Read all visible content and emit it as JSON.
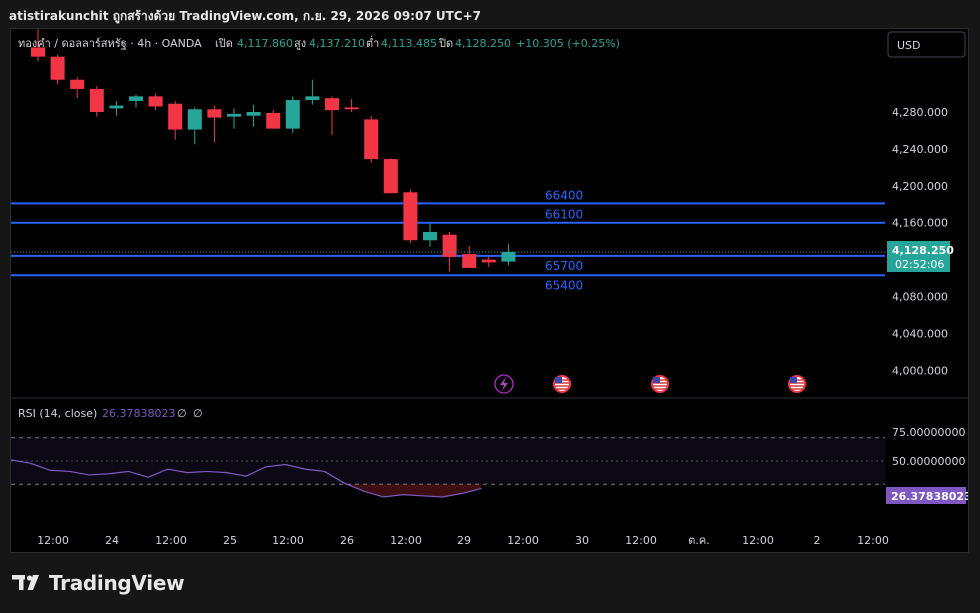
{
  "header": {
    "credit": "atistirakunchit ถูกสร้างด้วย TradingView.com, ก.ย. 29, 2026 09:07 UTC+7"
  },
  "legend": {
    "symbol": "ทองคำ / ดอลลาร์สหรัฐ · 4h · OANDA",
    "open_label": "เปิด",
    "open": "4,117.860",
    "high_label": "สูง",
    "high": "4,137.210",
    "low_label": "ต่ำ",
    "low": "4,113.485",
    "close_label": "ปิด",
    "close": "4,128.250",
    "change": "+10.305 (+0.25%)"
  },
  "currency_button": "USD",
  "price_badge": {
    "price": "4,128.250",
    "countdown": "02:52:06"
  },
  "rsi": {
    "label": "RSI (14, close)",
    "value": "26.37838023",
    "na1": "∅",
    "na2": "∅",
    "badge": "26.37838023"
  },
  "footer": {
    "brand": "TradingView"
  },
  "colors": {
    "up": "#26a69a",
    "down": "#f23645",
    "level": "#2962ff",
    "rsi": "#7e57c2",
    "bg": "#000000"
  },
  "icons": [
    "flash-icon",
    "us-flag-icon",
    "us-flag-icon",
    "us-flag-icon"
  ],
  "chart_data": [
    {
      "type": "candlestick",
      "title": "ทองคำ / ดอลลาร์สหรัฐ · 4h · OANDA",
      "ylim": [
        3970,
        4370
      ],
      "y_ticks": [
        "4,000.000",
        "4,040.000",
        "4,080.000",
        "4,120.000",
        "4,160.000",
        "4,200.000",
        "4,240.000",
        "4,280.000"
      ],
      "y_tick_values": [
        4000,
        4040,
        4080,
        4120,
        4160,
        4200,
        4240,
        4280
      ],
      "x_ticks": [
        "12:00",
        "24",
        "12:00",
        "25",
        "12:00",
        "26",
        "12:00",
        "29",
        "12:00",
        "30",
        "12:00",
        "ต.ค.",
        "12:00",
        "2",
        "12:00"
      ],
      "candles": [
        {
          "o": 4350,
          "h": 4370,
          "l": 4335,
          "c": 4340
        },
        {
          "o": 4340,
          "h": 4342,
          "l": 4310,
          "c": 4315
        },
        {
          "o": 4315,
          "h": 4318,
          "l": 4295,
          "c": 4305
        },
        {
          "o": 4305,
          "h": 4308,
          "l": 4275,
          "c": 4280
        },
        {
          "o": 4284,
          "h": 4292,
          "l": 4276,
          "c": 4287
        },
        {
          "o": 4292,
          "h": 4299,
          "l": 4285,
          "c": 4297
        },
        {
          "o": 4297,
          "h": 4300,
          "l": 4282,
          "c": 4286
        },
        {
          "o": 4289,
          "h": 4292,
          "l": 4250,
          "c": 4261
        },
        {
          "o": 4261,
          "h": 4285,
          "l": 4245,
          "c": 4283
        },
        {
          "o": 4283,
          "h": 4287,
          "l": 4247,
          "c": 4274
        },
        {
          "o": 4275,
          "h": 4284,
          "l": 4262,
          "c": 4278
        },
        {
          "o": 4276,
          "h": 4288,
          "l": 4264,
          "c": 4280
        },
        {
          "o": 4279,
          "h": 4282,
          "l": 4262,
          "c": 4262
        },
        {
          "o": 4262,
          "h": 4297,
          "l": 4257,
          "c": 4293
        },
        {
          "o": 4293,
          "h": 4315,
          "l": 4288,
          "c": 4297
        },
        {
          "o": 4295,
          "h": 4297,
          "l": 4255,
          "c": 4282
        },
        {
          "o": 4285,
          "h": 4294,
          "l": 4280,
          "c": 4283
        },
        {
          "o": 4272,
          "h": 4276,
          "l": 4225,
          "c": 4229
        },
        {
          "o": 4229,
          "h": 4230,
          "l": 4192,
          "c": 4192
        },
        {
          "o": 4193,
          "h": 4196,
          "l": 4138,
          "c": 4141
        },
        {
          "o": 4141,
          "h": 4159,
          "l": 4134,
          "c": 4150
        },
        {
          "o": 4147,
          "h": 4150,
          "l": 4107,
          "c": 4123
        },
        {
          "o": 4126,
          "h": 4135,
          "l": 4111,
          "c": 4111
        },
        {
          "o": 4120,
          "h": 4125,
          "l": 4112,
          "c": 4117
        },
        {
          "o": 4117.86,
          "h": 4137.21,
          "l": 4113.485,
          "c": 4128.25
        }
      ],
      "levels": [
        {
          "label": "66400",
          "value": 4181
        },
        {
          "label": "66100",
          "value": 4160
        },
        {
          "label": "65700",
          "value": 4124
        },
        {
          "label": "65400",
          "value": 4103
        }
      ],
      "current_price": 4128.25
    },
    {
      "type": "line",
      "title": "RSI (14, close)",
      "ylim": [
        0,
        100
      ],
      "y_ticks": [
        "75.00000000",
        "50.00000000"
      ],
      "y_tick_values": [
        75,
        50
      ],
      "bands": [
        30,
        50,
        70
      ],
      "values": [
        51,
        48,
        42,
        41,
        38,
        39,
        41,
        36,
        43,
        40,
        41,
        40,
        37,
        45,
        47,
        43,
        41,
        31,
        24,
        19,
        21,
        20,
        19,
        22,
        26.38
      ]
    }
  ]
}
